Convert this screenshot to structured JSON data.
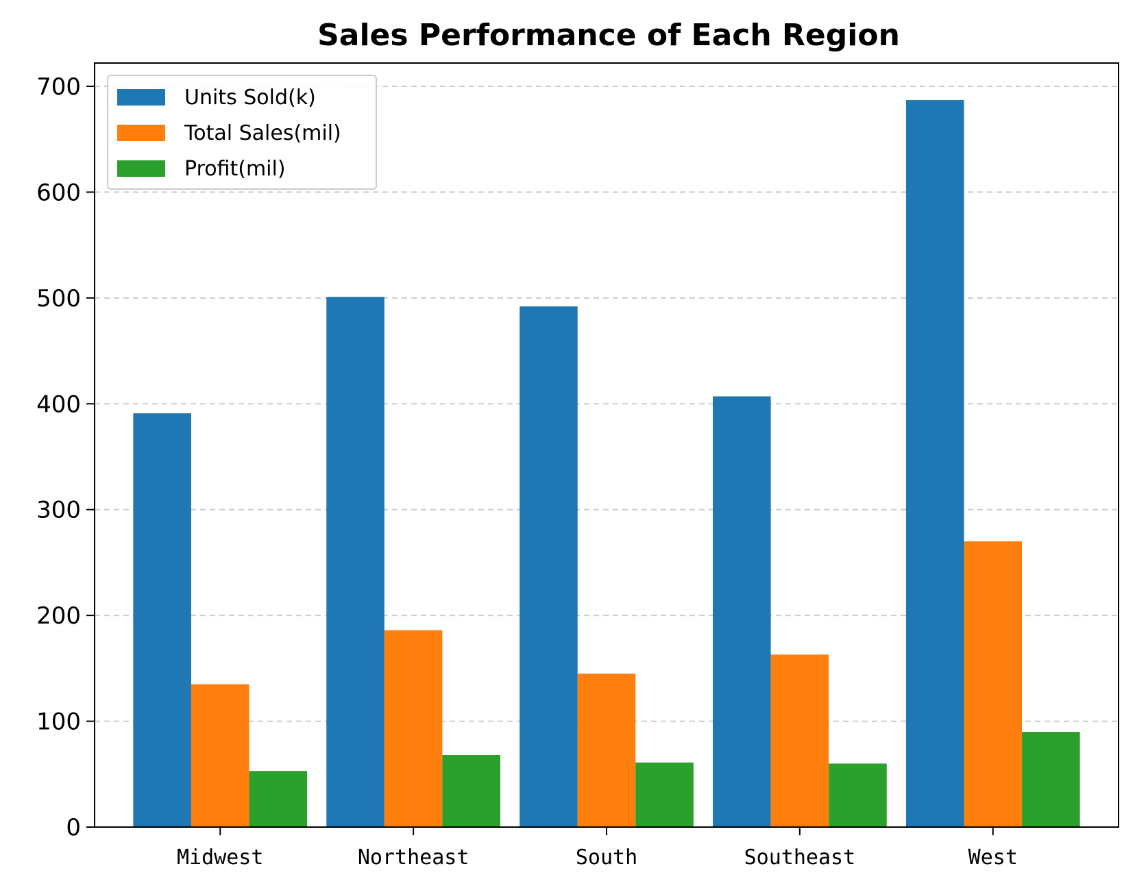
{
  "chart_data": {
    "type": "bar",
    "title": "Sales Performance of Each Region",
    "xlabel": "",
    "ylabel": "",
    "categories": [
      "Midwest",
      "Northeast",
      "South",
      "Southeast",
      "West"
    ],
    "series": [
      {
        "name": "Units Sold(k)",
        "color": "#1f77b4",
        "values": [
          391,
          501,
          492,
          407,
          687
        ]
      },
      {
        "name": "Total Sales(mil)",
        "color": "#ff7f0e",
        "values": [
          135,
          186,
          145,
          163,
          270
        ]
      },
      {
        "name": "Profit(mil)",
        "color": "#2ca02c",
        "values": [
          53,
          68,
          61,
          60,
          90
        ]
      }
    ],
    "ylim": [
      0,
      722
    ],
    "yticks": [
      0,
      100,
      200,
      300,
      400,
      500,
      600,
      700
    ],
    "grid": {
      "y": true,
      "style": "dashed"
    },
    "legend": {
      "position": "top-left"
    }
  }
}
